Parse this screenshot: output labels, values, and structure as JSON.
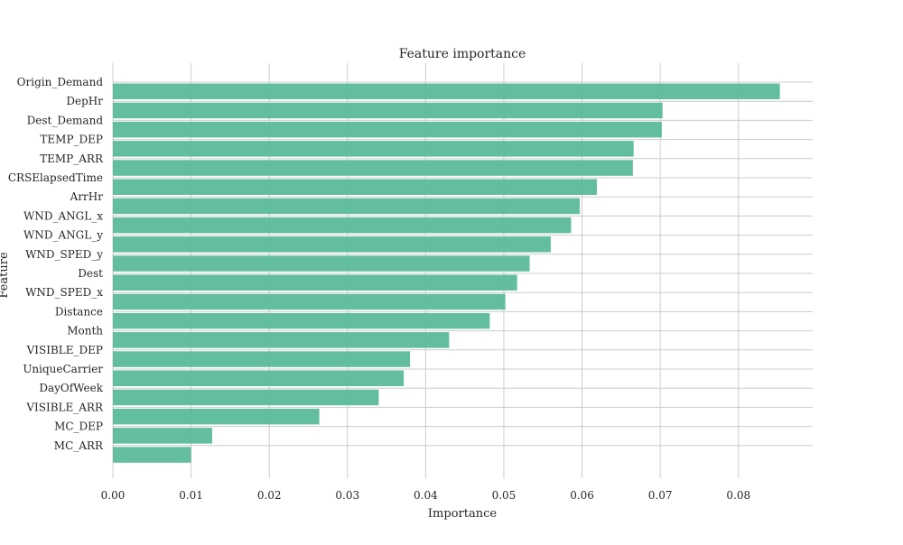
{
  "chart_data": {
    "type": "bar",
    "orientation": "horizontal",
    "title": "Feature importance",
    "xlabel": "Importance",
    "ylabel": "Feature",
    "xlim": [
      0,
      0.0895
    ],
    "xticks": [
      0.0,
      0.01,
      0.02,
      0.03,
      0.04,
      0.05,
      0.06,
      0.07,
      0.08
    ],
    "xtick_labels": [
      "0.00",
      "0.01",
      "0.02",
      "0.03",
      "0.04",
      "0.05",
      "0.06",
      "0.07",
      "0.08"
    ],
    "grid": true,
    "bar_color": "#5bba9b",
    "categories": [
      "Origin_Demand",
      "DepHr",
      "Dest_Demand",
      "TEMP_DEP",
      "TEMP_ARR",
      "CRSElapsedTime",
      "ArrHr",
      "WND_ANGL_x",
      "WND_ANGL_y",
      "WND_SPED_y",
      "Dest",
      "WND_SPED_x",
      "Distance",
      "Month",
      "VISIBLE_DEP",
      "UniqueCarrier",
      "DayOfWeek",
      "VISIBLE_ARR",
      "MC_DEP",
      "MC_ARR"
    ],
    "values": [
      0.0853,
      0.0703,
      0.0702,
      0.0666,
      0.0665,
      0.0619,
      0.0597,
      0.0586,
      0.056,
      0.0533,
      0.0517,
      0.0502,
      0.0482,
      0.043,
      0.038,
      0.0372,
      0.034,
      0.0264,
      0.0127,
      0.01
    ]
  }
}
